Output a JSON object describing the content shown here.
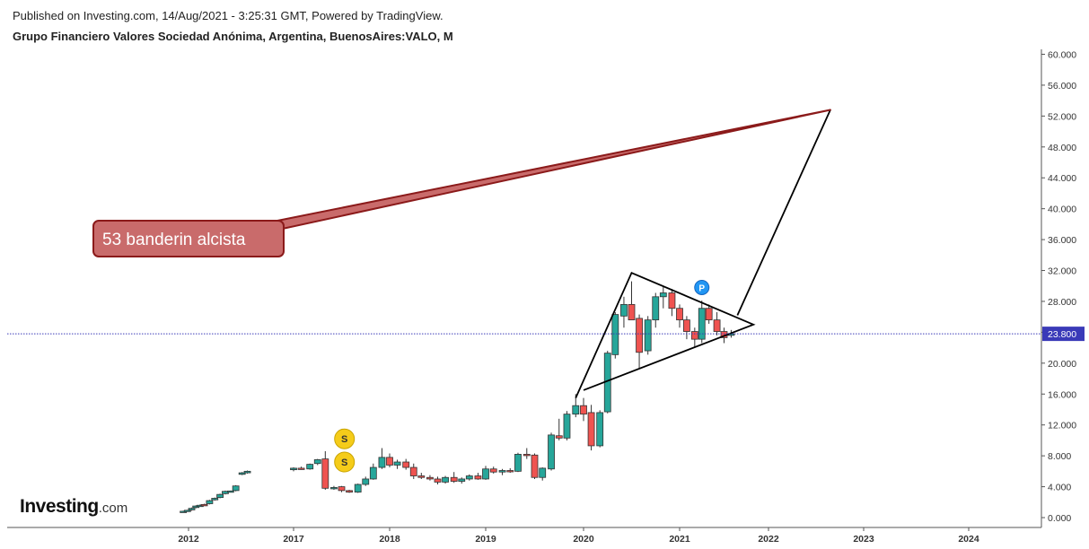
{
  "header": {
    "published": "Published on Investing.com, 14/Aug/2021 - 3:25:31 GMT, Powered by TradingView.",
    "symbol_title": "Grupo Financiero Valores Sociedad Anónima, Argentina, BuenosAires:VALO, M"
  },
  "logo": {
    "brand": "Investing",
    "suffix": ".com"
  },
  "colors": {
    "up": "#26a69a",
    "down": "#ef5350",
    "last_price_line": "#3a3ab8",
    "callout_fill": "#c96b6b",
    "callout_border": "#8b1a1a",
    "badge_s": "#f5cc1a",
    "badge_p": "#2196f3"
  },
  "chart_data": {
    "type": "candlestick",
    "interval": "M",
    "x_ticks": [
      "2012",
      "2017",
      "2018",
      "2019",
      "2020",
      "2021",
      "2022",
      "2023",
      "2024"
    ],
    "y_ticks": [
      "0.000",
      "4.000",
      "8.000",
      "12.000",
      "16.000",
      "20.000",
      "24.000",
      "28.000",
      "32.000",
      "36.000",
      "40.000",
      "44.000",
      "48.000",
      "52.000",
      "56.000",
      "60.000"
    ],
    "ylim": [
      -1,
      61
    ],
    "last_price": {
      "value": 23.8,
      "label": "23.800"
    },
    "annotation": {
      "text": "53 banderin alcista",
      "target": {
        "t": 2022.65,
        "value": 52.8
      }
    },
    "badges": [
      {
        "letter": "S",
        "t": 2017.53,
        "value": 10.2
      },
      {
        "letter": "S",
        "t": 2017.53,
        "value": 7.2
      },
      {
        "letter": "P",
        "t": 2021.25,
        "value": 29.8
      }
    ],
    "drawings": {
      "pennant": [
        {
          "t": 2019.92,
          "value": 15.5
        },
        {
          "t": 2020.5,
          "value": 31.7
        },
        {
          "t": 2021.83,
          "value": 25.0
        },
        {
          "t": 2020.0,
          "value": 16.5
        }
      ],
      "projection": [
        {
          "t": 2021.65,
          "value": 26.2
        },
        {
          "t": 2022.65,
          "value": 52.8
        }
      ]
    },
    "candles": [
      {
        "t": 2011.75,
        "o": 0.8,
        "h": 0.9,
        "l": 0.75,
        "c": 0.82
      },
      {
        "t": 2011.95,
        "o": 0.85,
        "h": 1.0,
        "l": 0.8,
        "c": 0.95
      },
      {
        "t": 2012.15,
        "o": 1.0,
        "h": 1.3,
        "l": 0.9,
        "c": 1.2
      },
      {
        "t": 2012.35,
        "o": 1.3,
        "h": 1.6,
        "l": 1.2,
        "c": 1.5
      },
      {
        "t": 2012.55,
        "o": 1.5,
        "h": 1.7,
        "l": 1.4,
        "c": 1.6
      },
      {
        "t": 2012.75,
        "o": 1.7,
        "h": 1.8,
        "l": 1.55,
        "c": 1.65
      },
      {
        "t": 2013.0,
        "o": 1.8,
        "h": 2.3,
        "l": 1.7,
        "c": 2.2
      },
      {
        "t": 2013.25,
        "o": 2.3,
        "h": 2.6,
        "l": 2.2,
        "c": 2.5
      },
      {
        "t": 2013.5,
        "o": 2.6,
        "h": 3.1,
        "l": 2.5,
        "c": 3.0
      },
      {
        "t": 2013.75,
        "o": 3.1,
        "h": 3.5,
        "l": 3.0,
        "c": 3.4
      },
      {
        "t": 2014.0,
        "o": 3.4,
        "h": 3.5,
        "l": 3.3,
        "c": 3.45
      },
      {
        "t": 2014.25,
        "o": 3.5,
        "h": 4.2,
        "l": 3.4,
        "c": 4.1
      },
      {
        "t": 2014.55,
        "o": 5.6,
        "h": 5.9,
        "l": 5.5,
        "c": 5.8
      },
      {
        "t": 2014.8,
        "o": 5.8,
        "h": 6.1,
        "l": 5.7,
        "c": 6.0
      },
      {
        "t": 2017.0,
        "o": 6.2,
        "h": 6.5,
        "l": 6.0,
        "c": 6.4
      },
      {
        "t": 2017.08,
        "o": 6.4,
        "h": 6.6,
        "l": 6.2,
        "c": 6.3
      },
      {
        "t": 2017.17,
        "o": 6.3,
        "h": 7.0,
        "l": 6.2,
        "c": 6.9
      },
      {
        "t": 2017.25,
        "o": 7.0,
        "h": 7.6,
        "l": 6.8,
        "c": 7.5
      },
      {
        "t": 2017.33,
        "o": 7.6,
        "h": 8.6,
        "l": 3.6,
        "c": 3.8
      },
      {
        "t": 2017.42,
        "o": 3.8,
        "h": 4.1,
        "l": 3.6,
        "c": 3.9
      },
      {
        "t": 2017.5,
        "o": 4.0,
        "h": 4.1,
        "l": 3.3,
        "c": 3.5
      },
      {
        "t": 2017.58,
        "o": 3.5,
        "h": 3.6,
        "l": 3.2,
        "c": 3.3
      },
      {
        "t": 2017.67,
        "o": 3.3,
        "h": 4.4,
        "l": 3.2,
        "c": 4.3
      },
      {
        "t": 2017.75,
        "o": 4.3,
        "h": 5.3,
        "l": 4.1,
        "c": 5.0
      },
      {
        "t": 2017.83,
        "o": 5.0,
        "h": 7.0,
        "l": 4.9,
        "c": 6.5
      },
      {
        "t": 2017.92,
        "o": 6.5,
        "h": 9.0,
        "l": 6.3,
        "c": 7.8
      },
      {
        "t": 2018.0,
        "o": 7.8,
        "h": 8.3,
        "l": 6.5,
        "c": 6.8
      },
      {
        "t": 2018.08,
        "o": 6.8,
        "h": 7.5,
        "l": 6.3,
        "c": 7.2
      },
      {
        "t": 2018.17,
        "o": 7.2,
        "h": 7.6,
        "l": 6.2,
        "c": 6.5
      },
      {
        "t": 2018.25,
        "o": 6.5,
        "h": 7.0,
        "l": 5.0,
        "c": 5.4
      },
      {
        "t": 2018.33,
        "o": 5.4,
        "h": 5.8,
        "l": 5.0,
        "c": 5.2
      },
      {
        "t": 2018.42,
        "o": 5.2,
        "h": 5.5,
        "l": 4.8,
        "c": 5.0
      },
      {
        "t": 2018.5,
        "o": 5.0,
        "h": 5.3,
        "l": 4.3,
        "c": 4.6
      },
      {
        "t": 2018.58,
        "o": 4.6,
        "h": 5.4,
        "l": 4.4,
        "c": 5.2
      },
      {
        "t": 2018.67,
        "o": 5.2,
        "h": 5.9,
        "l": 4.5,
        "c": 4.7
      },
      {
        "t": 2018.75,
        "o": 4.7,
        "h": 5.2,
        "l": 4.4,
        "c": 5.0
      },
      {
        "t": 2018.83,
        "o": 5.0,
        "h": 5.6,
        "l": 4.8,
        "c": 5.4
      },
      {
        "t": 2018.92,
        "o": 5.4,
        "h": 5.8,
        "l": 4.9,
        "c": 5.0
      },
      {
        "t": 2019.0,
        "o": 5.0,
        "h": 6.7,
        "l": 4.9,
        "c": 6.3
      },
      {
        "t": 2019.08,
        "o": 6.3,
        "h": 6.6,
        "l": 5.7,
        "c": 5.9
      },
      {
        "t": 2019.17,
        "o": 5.9,
        "h": 6.3,
        "l": 5.5,
        "c": 6.1
      },
      {
        "t": 2019.25,
        "o": 6.1,
        "h": 6.4,
        "l": 5.8,
        "c": 6.0
      },
      {
        "t": 2019.33,
        "o": 6.0,
        "h": 8.4,
        "l": 5.9,
        "c": 8.2
      },
      {
        "t": 2019.42,
        "o": 8.2,
        "h": 9.0,
        "l": 7.6,
        "c": 8.1
      },
      {
        "t": 2019.5,
        "o": 8.1,
        "h": 8.3,
        "l": 5.0,
        "c": 5.2
      },
      {
        "t": 2019.58,
        "o": 5.2,
        "h": 6.5,
        "l": 4.8,
        "c": 6.4
      },
      {
        "t": 2019.67,
        "o": 6.3,
        "h": 11.0,
        "l": 6.1,
        "c": 10.7
      },
      {
        "t": 2019.75,
        "o": 10.6,
        "h": 12.8,
        "l": 10.0,
        "c": 10.3
      },
      {
        "t": 2019.83,
        "o": 10.3,
        "h": 13.8,
        "l": 10.0,
        "c": 13.4
      },
      {
        "t": 2019.92,
        "o": 13.4,
        "h": 16.0,
        "l": 13.0,
        "c": 14.5
      },
      {
        "t": 2020.0,
        "o": 14.5,
        "h": 15.5,
        "l": 12.5,
        "c": 13.4
      },
      {
        "t": 2020.08,
        "o": 13.6,
        "h": 14.6,
        "l": 8.7,
        "c": 9.3
      },
      {
        "t": 2020.17,
        "o": 9.3,
        "h": 13.9,
        "l": 9.1,
        "c": 13.6
      },
      {
        "t": 2020.25,
        "o": 13.7,
        "h": 21.6,
        "l": 13.5,
        "c": 21.3
      },
      {
        "t": 2020.33,
        "o": 21.1,
        "h": 26.6,
        "l": 20.6,
        "c": 26.3
      },
      {
        "t": 2020.42,
        "o": 26.1,
        "h": 28.6,
        "l": 24.6,
        "c": 27.6
      },
      {
        "t": 2020.5,
        "o": 27.6,
        "h": 30.6,
        "l": 25.6,
        "c": 25.6
      },
      {
        "t": 2020.58,
        "o": 25.8,
        "h": 26.3,
        "l": 19.4,
        "c": 21.4
      },
      {
        "t": 2020.67,
        "o": 21.6,
        "h": 26.1,
        "l": 21.1,
        "c": 25.6
      },
      {
        "t": 2020.75,
        "o": 25.6,
        "h": 29.1,
        "l": 24.6,
        "c": 28.6
      },
      {
        "t": 2020.83,
        "o": 28.6,
        "h": 29.9,
        "l": 27.1,
        "c": 29.1
      },
      {
        "t": 2020.92,
        "o": 29.1,
        "h": 29.6,
        "l": 26.1,
        "c": 27.1
      },
      {
        "t": 2021.0,
        "o": 27.1,
        "h": 27.6,
        "l": 24.6,
        "c": 25.6
      },
      {
        "t": 2021.08,
        "o": 25.6,
        "h": 26.1,
        "l": 23.1,
        "c": 24.1
      },
      {
        "t": 2021.17,
        "o": 24.1,
        "h": 24.6,
        "l": 22.1,
        "c": 23.1
      },
      {
        "t": 2021.25,
        "o": 23.1,
        "h": 28.1,
        "l": 22.6,
        "c": 27.1
      },
      {
        "t": 2021.33,
        "o": 27.1,
        "h": 27.6,
        "l": 25.1,
        "c": 25.6
      },
      {
        "t": 2021.42,
        "o": 25.6,
        "h": 26.6,
        "l": 23.6,
        "c": 24.1
      },
      {
        "t": 2021.5,
        "o": 24.1,
        "h": 24.6,
        "l": 22.6,
        "c": 23.3
      },
      {
        "t": 2021.58,
        "o": 23.6,
        "h": 24.3,
        "l": 23.3,
        "c": 23.8
      }
    ]
  }
}
